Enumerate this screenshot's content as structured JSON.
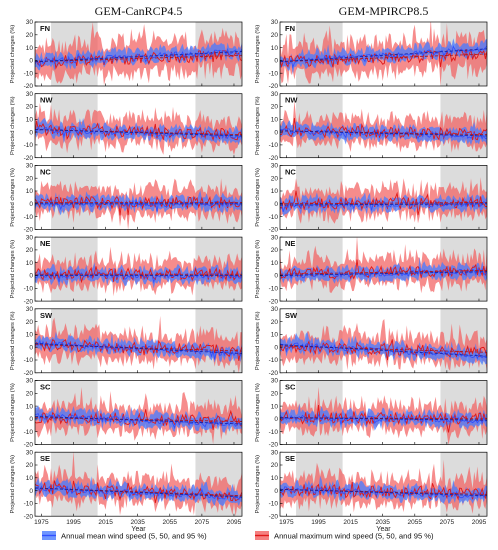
{
  "chart_data": {
    "type": "line",
    "columns": [
      "GEM-CanRCP4.5",
      "GEM-MPIRCP8.5"
    ],
    "regions": [
      "FN",
      "NW",
      "NC",
      "NE",
      "SW",
      "SC",
      "SE"
    ],
    "xlabel": "Year",
    "ylabel": "Projected changes (%)",
    "xlim": [
      1971,
      2100
    ],
    "ylim": [
      -20,
      30
    ],
    "xticks": [
      1975,
      1995,
      2015,
      2035,
      2055,
      2075,
      2095
    ],
    "yticks": [
      -20,
      -10,
      0,
      10,
      20,
      30
    ],
    "grey_periods": [
      [
        1981,
        2010
      ],
      [
        2071,
        2100
      ]
    ],
    "legend": [
      {
        "label": "Annual mean wind speed (5, 50, and 95 %)",
        "color": "#3050ff",
        "band_color": "#4a7cff"
      },
      {
        "label": "Annual maximum wind speed (5, 50, and 95 %)",
        "color": "#e01818",
        "band_color": "#f26060"
      }
    ],
    "panels": [
      {
        "column": "GEM-CanRCP4.5",
        "region": "FN",
        "mean_trend": [
          -1,
          7
        ],
        "max_trend": [
          -1,
          4
        ]
      },
      {
        "column": "GEM-MPIRCP8.5",
        "region": "FN",
        "mean_trend": [
          -1,
          9
        ],
        "max_trend": [
          -1,
          5
        ]
      },
      {
        "column": "GEM-CanRCP4.5",
        "region": "NW",
        "mean_trend": [
          2,
          -3
        ],
        "max_trend": [
          2,
          -2
        ]
      },
      {
        "column": "GEM-MPIRCP8.5",
        "region": "NW",
        "mean_trend": [
          1,
          -3
        ],
        "max_trend": [
          1,
          -2
        ]
      },
      {
        "column": "GEM-CanRCP4.5",
        "region": "NC",
        "mean_trend": [
          0,
          0
        ],
        "max_trend": [
          1,
          1
        ]
      },
      {
        "column": "GEM-MPIRCP8.5",
        "region": "NC",
        "mean_trend": [
          -1,
          0
        ],
        "max_trend": [
          0,
          1
        ]
      },
      {
        "column": "GEM-CanRCP4.5",
        "region": "NE",
        "mean_trend": [
          0,
          0
        ],
        "max_trend": [
          1,
          1
        ]
      },
      {
        "column": "GEM-MPIRCP8.5",
        "region": "NE",
        "mean_trend": [
          0,
          3
        ],
        "max_trend": [
          1,
          4
        ]
      },
      {
        "column": "GEM-CanRCP4.5",
        "region": "SW",
        "mean_trend": [
          3,
          -5
        ],
        "max_trend": [
          2,
          -3
        ]
      },
      {
        "column": "GEM-MPIRCP8.5",
        "region": "SW",
        "mean_trend": [
          2,
          -7
        ],
        "max_trend": [
          1,
          -4
        ]
      },
      {
        "column": "GEM-CanRCP4.5",
        "region": "SC",
        "mean_trend": [
          2,
          -4
        ],
        "max_trend": [
          1,
          -2
        ]
      },
      {
        "column": "GEM-MPIRCP8.5",
        "region": "SC",
        "mean_trend": [
          1,
          -1
        ],
        "max_trend": [
          1,
          0
        ]
      },
      {
        "column": "GEM-CanRCP4.5",
        "region": "SE",
        "mean_trend": [
          2,
          -5
        ],
        "max_trend": [
          2,
          -4
        ]
      },
      {
        "column": "GEM-MPIRCP8.5",
        "region": "SE",
        "mean_trend": [
          1,
          -4
        ],
        "max_trend": [
          1,
          -3
        ]
      }
    ]
  }
}
